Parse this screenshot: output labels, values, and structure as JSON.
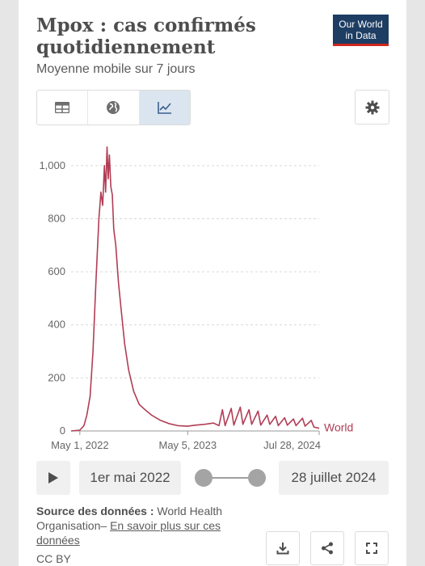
{
  "header": {
    "title": "Mpox : cas confirmés quotidiennement",
    "subtitle": "Moyenne mobile sur 7 jours",
    "logo_line1": "Our World",
    "logo_line2": "in Data"
  },
  "tabs": [
    {
      "icon": "table-icon",
      "active": false
    },
    {
      "icon": "globe-icon",
      "active": false
    },
    {
      "icon": "line-chart-icon",
      "active": true
    }
  ],
  "timeline": {
    "start_label": "1er mai 2022",
    "end_label": "28 juillet 2024"
  },
  "footer": {
    "source_label": "Source des données :",
    "source_text": "World Health Organisation–",
    "source_link": "En savoir plus sur ces données",
    "license": "CC BY"
  },
  "colors": {
    "series": "#b13d55",
    "logo_bg": "#1d3d63",
    "logo_accent": "#ce261e"
  },
  "chart_data": {
    "type": "line",
    "ylim": [
      0,
      1100
    ],
    "y_ticks": [
      0,
      200,
      400,
      600,
      800,
      1000
    ],
    "y_tick_labels": [
      "0",
      "200",
      "400",
      "600",
      "800",
      "1,000"
    ],
    "x_range": [
      "2022-04-01",
      "2024-07-28"
    ],
    "x_ticks": [
      "2022-05-01",
      "2023-05-05",
      "2024-07-28"
    ],
    "x_tick_labels": [
      "May 1, 2022",
      "May 5, 2023",
      "Jul 28, 2024"
    ],
    "grid": true,
    "series": [
      {
        "name": "World",
        "points": [
          [
            "2022-04-01",
            0
          ],
          [
            "2022-05-01",
            3
          ],
          [
            "2022-05-15",
            20
          ],
          [
            "2022-05-25",
            60
          ],
          [
            "2022-06-05",
            130
          ],
          [
            "2022-06-15",
            300
          ],
          [
            "2022-06-25",
            560
          ],
          [
            "2022-07-05",
            800
          ],
          [
            "2022-07-12",
            900
          ],
          [
            "2022-07-18",
            850
          ],
          [
            "2022-07-24",
            1000
          ],
          [
            "2022-07-28",
            900
          ],
          [
            "2022-08-02",
            1070
          ],
          [
            "2022-08-06",
            950
          ],
          [
            "2022-08-10",
            1040
          ],
          [
            "2022-08-15",
            920
          ],
          [
            "2022-08-20",
            890
          ],
          [
            "2022-08-25",
            760
          ],
          [
            "2022-09-01",
            700
          ],
          [
            "2022-09-10",
            560
          ],
          [
            "2022-09-20",
            450
          ],
          [
            "2022-10-01",
            330
          ],
          [
            "2022-10-15",
            230
          ],
          [
            "2022-11-01",
            150
          ],
          [
            "2022-11-20",
            100
          ],
          [
            "2022-12-10",
            80
          ],
          [
            "2023-01-01",
            60
          ],
          [
            "2023-02-01",
            40
          ],
          [
            "2023-03-01",
            28
          ],
          [
            "2023-04-01",
            20
          ],
          [
            "2023-05-05",
            18
          ],
          [
            "2023-06-01",
            22
          ],
          [
            "2023-07-01",
            25
          ],
          [
            "2023-08-01",
            30
          ],
          [
            "2023-08-20",
            20
          ],
          [
            "2023-09-01",
            80
          ],
          [
            "2023-09-10",
            20
          ],
          [
            "2023-10-01",
            85
          ],
          [
            "2023-10-10",
            22
          ],
          [
            "2023-11-01",
            90
          ],
          [
            "2023-11-10",
            25
          ],
          [
            "2023-12-01",
            80
          ],
          [
            "2023-12-10",
            25
          ],
          [
            "2024-01-01",
            75
          ],
          [
            "2024-01-10",
            22
          ],
          [
            "2024-02-01",
            60
          ],
          [
            "2024-02-10",
            25
          ],
          [
            "2024-03-01",
            55
          ],
          [
            "2024-03-10",
            20
          ],
          [
            "2024-04-01",
            50
          ],
          [
            "2024-04-10",
            22
          ],
          [
            "2024-05-01",
            45
          ],
          [
            "2024-05-10",
            20
          ],
          [
            "2024-06-01",
            48
          ],
          [
            "2024-06-10",
            18
          ],
          [
            "2024-07-01",
            40
          ],
          [
            "2024-07-10",
            15
          ],
          [
            "2024-07-28",
            10
          ]
        ]
      }
    ]
  }
}
